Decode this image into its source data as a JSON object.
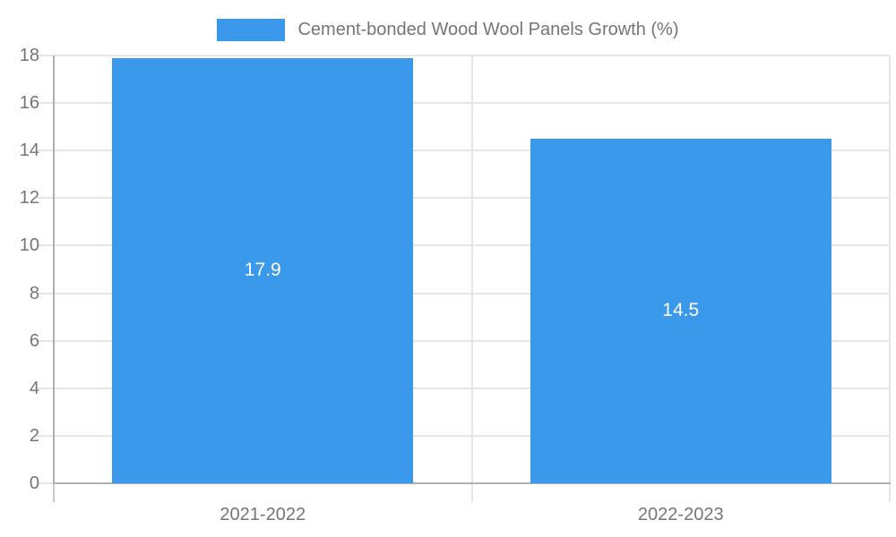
{
  "chart_data": {
    "type": "bar",
    "title": "",
    "legend": {
      "label": "Cement-bonded Wood Wool Panels Growth (%)",
      "position": "top",
      "swatch_color": "#3b99ec"
    },
    "categories": [
      "2021-2022",
      "2022-2023"
    ],
    "series": [
      {
        "name": "Cement-bonded Wood Wool Panels Growth (%)",
        "values": [
          17.9,
          14.5
        ]
      }
    ],
    "value_labels": [
      "17.9",
      "14.5"
    ],
    "xlabel": "",
    "ylabel": "",
    "ylim": [
      0,
      18
    ],
    "y_ticks": [
      0,
      2,
      4,
      6,
      8,
      10,
      12,
      14,
      16,
      18
    ],
    "grid": true,
    "bar_width_fraction": 0.72,
    "colors": {
      "bar": "#3b99ec",
      "grid": "#e6e6e6",
      "axis": "#b0b0b0",
      "tick": "#cccccc",
      "axis_text": "#757575",
      "value_text": "#ffffff"
    }
  }
}
